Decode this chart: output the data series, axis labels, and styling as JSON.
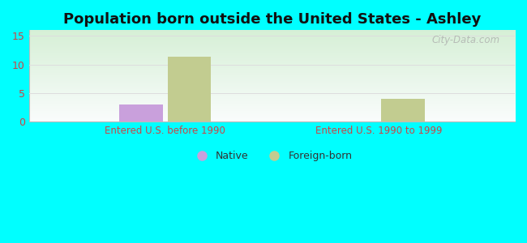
{
  "title": "Population born outside the United States - Ashley",
  "title_fontsize": 13,
  "groups": [
    "Entered U.S. before 1990",
    "Entered U.S. 1990 to 1999"
  ],
  "native_values": [
    3.0,
    0
  ],
  "foreign_values": [
    11.3,
    4.0
  ],
  "native_color": "#c9a0dc",
  "foreign_color": "#c2cc90",
  "ylim": [
    0,
    16
  ],
  "yticks": [
    0,
    5,
    10,
    15
  ],
  "background_outer": "#00ffff",
  "background_plot_topleft": "#d4ecd4",
  "background_plot_bottomright": "#f8f8ff",
  "bar_width": 0.09,
  "group_centers": [
    0.28,
    0.72
  ],
  "watermark": "City-Data.com",
  "legend_native": "Native",
  "legend_foreign": "Foreign-born",
  "xlabel_color": "#cc4444",
  "ytick_color": "#cc4444",
  "grid_color": "#dddddd"
}
